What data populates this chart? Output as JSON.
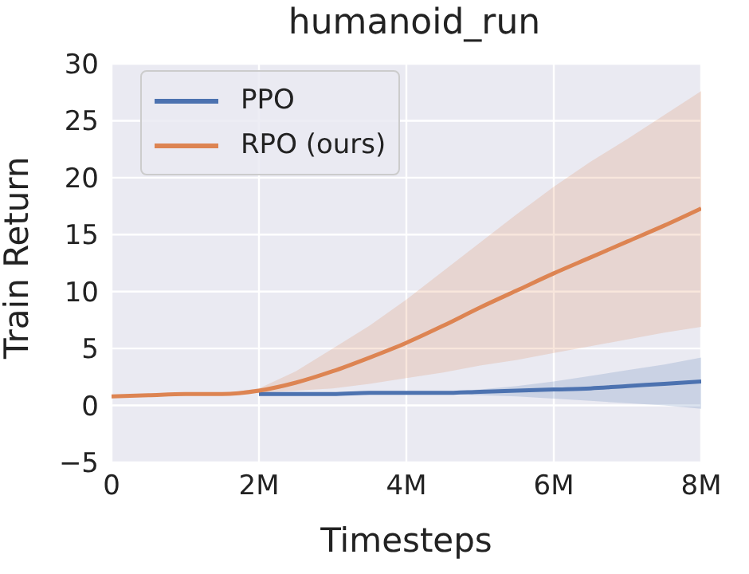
{
  "chart_data": {
    "type": "line",
    "title": "humanoid_run",
    "xlabel": "Timesteps",
    "ylabel": "Train Return",
    "x": [
      0,
      500000,
      1000000,
      1500000,
      2000000,
      2500000,
      3000000,
      3500000,
      4000000,
      4500000,
      5000000,
      5500000,
      6000000,
      6500000,
      7000000,
      7500000,
      8000000
    ],
    "series": [
      {
        "name": "PPO",
        "color": "#4c72b0",
        "values": [
          null,
          null,
          null,
          null,
          1.0,
          1.0,
          1.0,
          1.1,
          1.1,
          1.1,
          1.2,
          1.3,
          1.4,
          1.5,
          1.7,
          1.9,
          2.1
        ],
        "lower": [
          0.8,
          0.9,
          0.95,
          1.0,
          1.0,
          1.0,
          1.0,
          1.0,
          1.0,
          1.0,
          0.9,
          0.8,
          0.6,
          0.4,
          0.2,
          0.0,
          -0.3
        ],
        "upper": [
          0.8,
          0.9,
          0.95,
          1.0,
          1.0,
          1.0,
          1.1,
          1.1,
          1.15,
          1.2,
          1.4,
          1.7,
          2.1,
          2.6,
          3.1,
          3.6,
          4.2
        ]
      },
      {
        "name": "RPO (ours)",
        "color": "#dd8452",
        "values": [
          0.8,
          0.9,
          1.0,
          1.0,
          1.3,
          2.0,
          3.0,
          4.2,
          5.5,
          7.0,
          8.6,
          10.1,
          11.6,
          13.0,
          14.4,
          15.8,
          17.3
        ],
        "lower": [
          0.8,
          0.9,
          0.95,
          1.0,
          1.1,
          1.3,
          1.5,
          1.9,
          2.4,
          2.9,
          3.5,
          4.0,
          4.6,
          5.2,
          5.8,
          6.4,
          6.9
        ],
        "upper": [
          0.8,
          0.9,
          0.95,
          1.05,
          1.5,
          3.0,
          5.0,
          7.0,
          9.3,
          11.8,
          14.3,
          16.8,
          19.2,
          21.4,
          23.4,
          25.5,
          27.6
        ]
      }
    ],
    "xlim": [
      0,
      8000000
    ],
    "xticks": [
      0,
      {
        "value": 2000000,
        "label": "2M"
      },
      {
        "value": 4000000,
        "label": "4M"
      },
      {
        "value": 6000000,
        "label": "6M"
      },
      {
        "value": 8000000,
        "label": "8M"
      }
    ],
    "ylim": [
      -5,
      30
    ],
    "yticks": [
      -5,
      0,
      5,
      10,
      15,
      20,
      25,
      30
    ],
    "grid": true,
    "legend": "top left",
    "marker": "none",
    "line_style": "solid"
  }
}
